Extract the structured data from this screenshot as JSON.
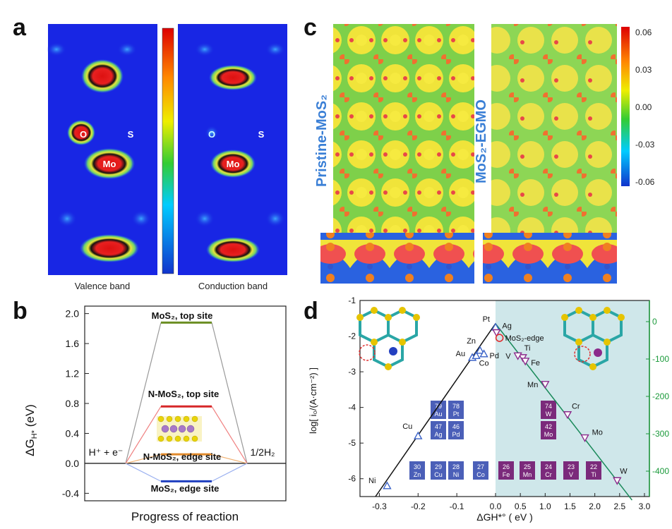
{
  "panels": {
    "a": {
      "letter": "a",
      "left_caption": "Valence band",
      "right_caption": "Conduction band",
      "atom_labels": {
        "o": "O",
        "s": "S",
        "mo": "Mo"
      }
    },
    "b": {
      "letter": "b",
      "ylabel": "ΔG",
      "ylabel_sub": "H*",
      "ylabel_unit": "(eV)",
      "xlabel": "Progress of reaction",
      "left_state": "H⁺ + e⁻",
      "right_state": "1/2H₂",
      "chart_data": {
        "type": "line",
        "ylim": [
          -0.5,
          2.1
        ],
        "yticks": [
          "2.0",
          "1.6",
          "1.2",
          "0.8",
          "0.4",
          "0.0",
          "-0.4"
        ],
        "series": [
          {
            "name": "MoS₂, top site",
            "value": 1.88,
            "color": "#6b8e23"
          },
          {
            "name": "N-MoS₂, top site",
            "value": 0.76,
            "color": "#d62728"
          },
          {
            "name": "N-MoS₂, edge site",
            "value": 0.12,
            "color": "#e08a2c"
          },
          {
            "name": "MoS₂, edge site",
            "value": -0.24,
            "color": "#1f3fbf"
          }
        ],
        "reference": 0.0
      }
    },
    "c": {
      "letter": "c",
      "left_title": "Pristine-MoS₂",
      "right_title": "MoS₂-EGMO",
      "colorbar_ticks": [
        "0.06",
        "0.03",
        "0.00",
        "-0.03",
        "-0.06"
      ]
    },
    "d": {
      "letter": "d",
      "ylabel": "log[ i₀/(A·cm⁻²) ]",
      "xlabel": "ΔGH*° ( eV )",
      "xticks": [
        "-0.3",
        "-0.2",
        "-0.1",
        "0.0",
        "0.5",
        "1.0",
        "1.5",
        "2.0",
        "2.5",
        "3.0"
      ],
      "yticks_left": [
        "-1",
        "-2",
        "-3",
        "-4",
        "-5",
        "-6"
      ],
      "yticks_right": [
        "0",
        "-100",
        "-200",
        "-300",
        "-400"
      ],
      "chart_data": {
        "type": "scatter",
        "xlabel": "ΔGH*° ( eV )",
        "ylabel": "log[ i₀/(A·cm⁻²) ]",
        "xlim": [
          -0.35,
          3.1
        ],
        "ylim": [
          -6.5,
          -1
        ],
        "points": [
          {
            "label": "Ni",
            "x": -0.28,
            "y": -6.2,
            "color": "#3a62c8"
          },
          {
            "label": "Cu",
            "x": -0.2,
            "y": -4.8,
            "color": "#3a62c8"
          },
          {
            "label": "Au",
            "x": -0.06,
            "y": -2.6,
            "color": "#3a62c8"
          },
          {
            "label": "Co",
            "x": -0.05,
            "y": -2.55,
            "color": "#3a62c8"
          },
          {
            "label": "Zn",
            "x": -0.04,
            "y": -2.4,
            "color": "#3a62c8"
          },
          {
            "label": "Pd",
            "x": -0.03,
            "y": -2.5,
            "color": "#3a62c8"
          },
          {
            "label": "Pt",
            "x": 0.0,
            "y": -1.75,
            "color": "#3a62c8"
          },
          {
            "label": "Ag",
            "x": 0.02,
            "y": -1.9,
            "color": "#8b2a8b"
          },
          {
            "label": "MoS₂-edge",
            "x": 0.08,
            "y": -2.05,
            "color": "#e03030"
          },
          {
            "label": "Ti",
            "x": 0.55,
            "y": -2.6,
            "color": "#8b2a8b"
          },
          {
            "label": "V",
            "x": 0.45,
            "y": -2.55,
            "color": "#8b2a8b"
          },
          {
            "label": "Fe",
            "x": 0.6,
            "y": -2.7,
            "color": "#8b2a8b"
          },
          {
            "label": "Mn",
            "x": 1.0,
            "y": -3.35,
            "color": "#8b2a8b"
          },
          {
            "label": "Cr",
            "x": 1.45,
            "y": -4.2,
            "color": "#8b2a8b"
          },
          {
            "label": "Mo",
            "x": 1.8,
            "y": -4.85,
            "color": "#8b2a8b"
          },
          {
            "label": "W",
            "x": 2.45,
            "y": -6.05,
            "color": "#8b2a8b"
          }
        ]
      },
      "elements_blue": [
        {
          "num": "79",
          "sym": "Au"
        },
        {
          "num": "78",
          "sym": "Pt"
        },
        {
          "num": "47",
          "sym": "Ag"
        },
        {
          "num": "46",
          "sym": "Pd"
        },
        {
          "num": "30",
          "sym": "Zn"
        },
        {
          "num": "29",
          "sym": "Cu"
        },
        {
          "num": "28",
          "sym": "Ni"
        },
        {
          "num": "27",
          "sym": "Co"
        }
      ],
      "elements_purple": [
        {
          "num": "74",
          "sym": "W"
        },
        {
          "num": "42",
          "sym": "Mo"
        },
        {
          "num": "26",
          "sym": "Fe"
        },
        {
          "num": "25",
          "sym": "Mn"
        },
        {
          "num": "24",
          "sym": "Cr"
        },
        {
          "num": "23",
          "sym": "V"
        },
        {
          "num": "22",
          "sym": "Ti"
        }
      ]
    }
  },
  "colors": {
    "jet_blue": "#1a2de8",
    "jet_green": "#7ad36b",
    "jet_yellow": "#e8e43a",
    "jet_red": "#e82020",
    "shaded_region": "#cfe7ea",
    "green_axis": "#1a9a3a"
  }
}
